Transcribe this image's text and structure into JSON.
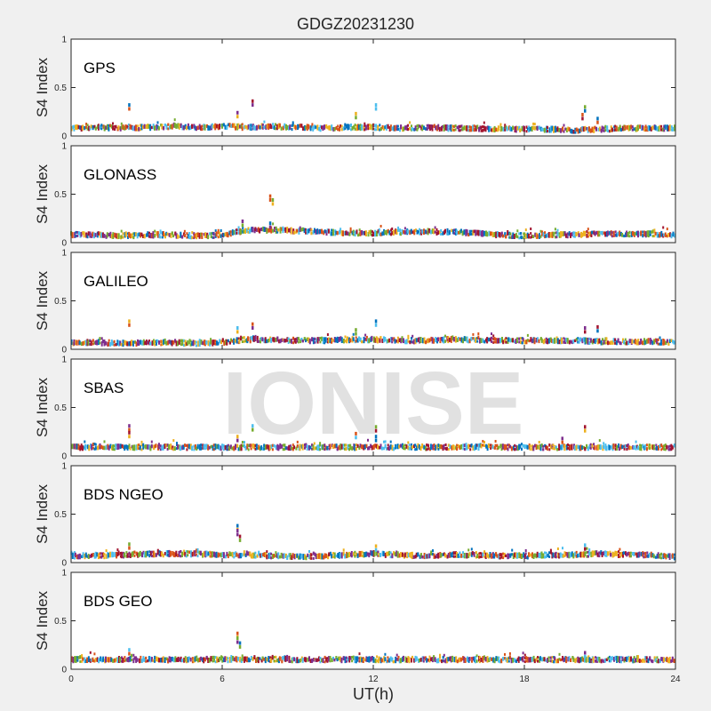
{
  "figure": {
    "title": "GDGZ20231230",
    "watermark": "IONISE",
    "xlabel": "UT(h)"
  },
  "colors": [
    "#0072BD",
    "#D95319",
    "#EDB120",
    "#7E2F8E",
    "#77AC30",
    "#4DBEEE",
    "#A2142F"
  ],
  "chart_data": [
    {
      "type": "scatter",
      "panel": "GPS",
      "title": "",
      "xlabel": "",
      "ylabel": "S4 Index",
      "xlim": [
        0,
        24
      ],
      "ylim": [
        0,
        1
      ],
      "yticks": [
        0,
        0.5,
        1
      ],
      "ytick_labels": [
        "0",
        "0.5",
        "1"
      ],
      "xticks": [
        0,
        6,
        12,
        18,
        24
      ],
      "baseline": [
        0.08,
        0.09,
        0.08,
        0.09,
        0.1,
        0.09,
        0.1,
        0.09,
        0.1,
        0.09,
        0.08,
        0.09,
        0.09,
        0.08,
        0.09,
        0.08,
        0.08,
        0.07,
        0.07,
        0.07,
        0.06,
        0.07,
        0.08,
        0.08,
        0.08
      ],
      "spikes": [
        [
          2.3,
          0.32
        ],
        [
          6.6,
          0.24
        ],
        [
          7.2,
          0.36
        ],
        [
          11.3,
          0.23
        ],
        [
          12.1,
          0.32
        ],
        [
          20.3,
          0.22
        ],
        [
          20.4,
          0.3
        ],
        [
          20.9,
          0.18
        ]
      ]
    },
    {
      "type": "scatter",
      "panel": "GLONASS",
      "title": "",
      "xlabel": "",
      "ylabel": "S4 Index",
      "xlim": [
        0,
        24
      ],
      "ylim": [
        0,
        1
      ],
      "yticks": [
        0,
        0.5,
        1
      ],
      "ytick_labels": [
        "0",
        "0.5",
        "1"
      ],
      "xticks": [
        0,
        6,
        12,
        18,
        24
      ],
      "baseline": [
        0.08,
        0.08,
        0.07,
        0.08,
        0.08,
        0.07,
        0.08,
        0.13,
        0.13,
        0.12,
        0.11,
        0.1,
        0.1,
        0.11,
        0.11,
        0.11,
        0.1,
        0.08,
        0.07,
        0.08,
        0.08,
        0.09,
        0.09,
        0.09,
        0.08
      ],
      "spikes": [
        [
          7.9,
          0.48
        ],
        [
          8.0,
          0.44
        ],
        [
          7.9,
          0.2
        ],
        [
          6.8,
          0.22
        ]
      ]
    },
    {
      "type": "scatter",
      "panel": "GALILEO",
      "title": "",
      "xlabel": "",
      "ylabel": "S4 Index",
      "xlim": [
        0,
        24
      ],
      "ylim": [
        0,
        1
      ],
      "yticks": [
        0,
        0.5,
        1
      ],
      "ytick_labels": [
        "0",
        "0.5",
        "1"
      ],
      "xticks": [
        0,
        6,
        12,
        18,
        24
      ],
      "baseline": [
        0.07,
        0.07,
        0.06,
        0.07,
        0.07,
        0.06,
        0.07,
        0.1,
        0.1,
        0.09,
        0.09,
        0.1,
        0.1,
        0.09,
        0.09,
        0.1,
        0.1,
        0.09,
        0.09,
        0.09,
        0.09,
        0.08,
        0.08,
        0.08,
        0.07
      ],
      "spikes": [
        [
          2.3,
          0.29
        ],
        [
          6.6,
          0.22
        ],
        [
          7.2,
          0.26
        ],
        [
          11.3,
          0.2
        ],
        [
          12.1,
          0.29
        ],
        [
          20.4,
          0.22
        ],
        [
          20.9,
          0.23
        ]
      ]
    },
    {
      "type": "scatter",
      "panel": "SBAS",
      "title": "",
      "xlabel": "",
      "ylabel": "S4 Index",
      "xlim": [
        0,
        24
      ],
      "ylim": [
        0,
        1
      ],
      "yticks": [
        0,
        0.5,
        1
      ],
      "ytick_labels": [
        "0",
        "0.5",
        "1"
      ],
      "xticks": [
        0,
        6,
        12,
        18,
        24
      ],
      "baseline": [
        0.09,
        0.09,
        0.09,
        0.09,
        0.09,
        0.09,
        0.09,
        0.09,
        0.09,
        0.09,
        0.09,
        0.09,
        0.09,
        0.09,
        0.09,
        0.09,
        0.09,
        0.09,
        0.09,
        0.09,
        0.09,
        0.09,
        0.09,
        0.09,
        0.09
      ],
      "spikes": [
        [
          2.3,
          0.31
        ],
        [
          2.3,
          0.24
        ],
        [
          6.6,
          0.2
        ],
        [
          7.2,
          0.31
        ],
        [
          11.3,
          0.23
        ],
        [
          12.1,
          0.3
        ],
        [
          12.1,
          0.2
        ],
        [
          19.5,
          0.18
        ],
        [
          20.4,
          0.3
        ]
      ]
    },
    {
      "type": "scatter",
      "panel": "BDS NGEO",
      "title": "",
      "xlabel": "",
      "ylabel": "S4 Index",
      "xlim": [
        0,
        24
      ],
      "ylim": [
        0,
        1
      ],
      "yticks": [
        0,
        0.5,
        1
      ],
      "ytick_labels": [
        "0",
        "0.5",
        "1"
      ],
      "xticks": [
        0,
        6,
        12,
        18,
        24
      ],
      "baseline": [
        0.07,
        0.07,
        0.08,
        0.09,
        0.09,
        0.09,
        0.08,
        0.08,
        0.07,
        0.06,
        0.07,
        0.08,
        0.09,
        0.08,
        0.07,
        0.08,
        0.08,
        0.07,
        0.07,
        0.08,
        0.08,
        0.09,
        0.08,
        0.08,
        0.06
      ],
      "spikes": [
        [
          2.3,
          0.19
        ],
        [
          6.6,
          0.38
        ],
        [
          6.6,
          0.33
        ],
        [
          6.7,
          0.27
        ],
        [
          12.1,
          0.17
        ],
        [
          20.4,
          0.18
        ]
      ]
    },
    {
      "type": "scatter",
      "panel": "BDS GEO",
      "title": "",
      "xlabel": "",
      "ylabel": "S4 Index",
      "xlim": [
        0,
        24
      ],
      "ylim": [
        0,
        1
      ],
      "yticks": [
        0,
        0.5,
        1
      ],
      "ytick_labels": [
        "0",
        "0.5",
        "1"
      ],
      "xticks": [
        0,
        6,
        12,
        18,
        24
      ],
      "baseline": [
        0.1,
        0.1,
        0.1,
        0.1,
        0.1,
        0.1,
        0.1,
        0.1,
        0.1,
        0.1,
        0.1,
        0.1,
        0.1,
        0.1,
        0.1,
        0.1,
        0.1,
        0.1,
        0.1,
        0.1,
        0.1,
        0.1,
        0.1,
        0.1,
        0.1
      ],
      "spikes": [
        [
          2.3,
          0.2
        ],
        [
          6.6,
          0.37
        ],
        [
          6.6,
          0.32
        ],
        [
          6.7,
          0.27
        ],
        [
          20.4,
          0.17
        ]
      ]
    }
  ]
}
